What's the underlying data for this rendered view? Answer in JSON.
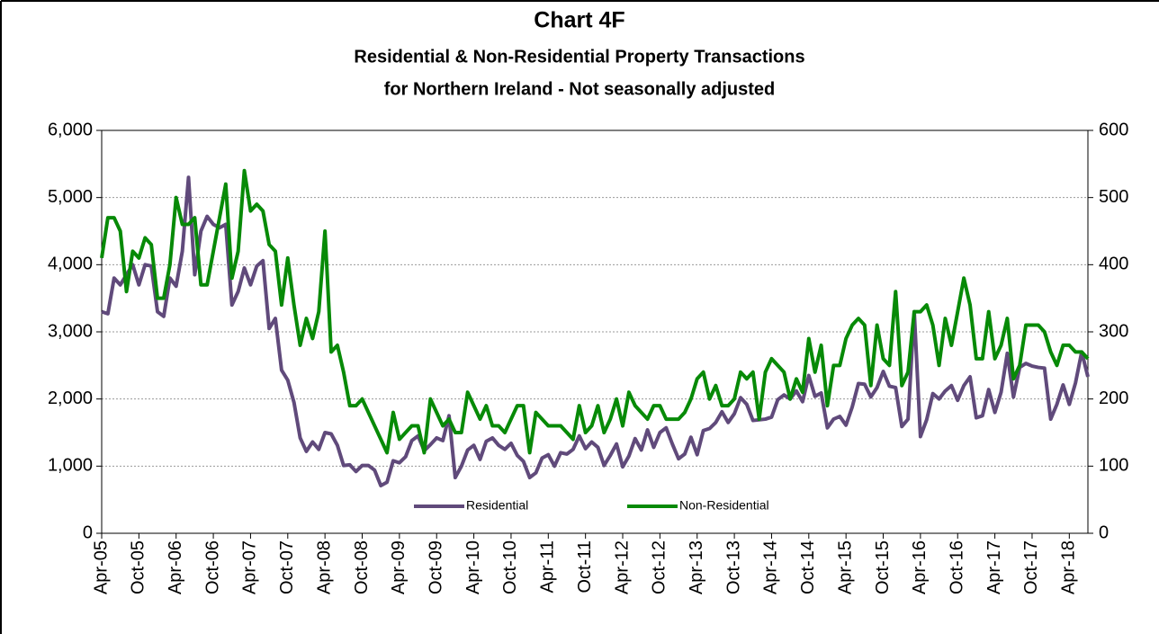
{
  "chart_data": {
    "type": "line",
    "title": "Chart 4F",
    "subtitle": [
      "Residential & Non-Residential Property Transactions",
      "for Northern Ireland - Not seasonally adjusted"
    ],
    "categories": [
      "Apr-05",
      null,
      null,
      null,
      null,
      null,
      "Oct-05",
      null,
      null,
      null,
      null,
      null,
      "Apr-06",
      null,
      null,
      null,
      null,
      null,
      "Oct-06",
      null,
      null,
      null,
      null,
      null,
      "Apr-07",
      null,
      null,
      null,
      null,
      null,
      "Oct-07",
      null,
      null,
      null,
      null,
      null,
      "Apr-08",
      null,
      null,
      null,
      null,
      null,
      "Oct-08",
      null,
      null,
      null,
      null,
      null,
      "Apr-09",
      null,
      null,
      null,
      null,
      null,
      "Oct-09",
      null,
      null,
      null,
      null,
      null,
      "Apr-10",
      null,
      null,
      null,
      null,
      null,
      "Oct-10",
      null,
      null,
      null,
      null,
      null,
      "Apr-11",
      null,
      null,
      null,
      null,
      null,
      "Oct-11",
      null,
      null,
      null,
      null,
      null,
      "Apr-12",
      null,
      null,
      null,
      null,
      null,
      "Oct-12",
      null,
      null,
      null,
      null,
      null,
      "Apr-13",
      null,
      null,
      null,
      null,
      null,
      "Oct-13",
      null,
      null,
      null,
      null,
      null,
      "Apr-14",
      null,
      null,
      null,
      null,
      null,
      "Oct-14",
      null,
      null,
      null,
      null,
      null,
      "Apr-15",
      null,
      null,
      null,
      null,
      null,
      "Oct-15",
      null,
      null,
      null,
      null,
      null,
      "Apr-16",
      null,
      null,
      null,
      null,
      null,
      "Oct-16",
      null,
      null,
      null,
      null,
      null,
      "Apr-17",
      null,
      null,
      null,
      null,
      null,
      "Oct-17",
      null,
      null,
      null,
      null,
      null,
      "Apr-18",
      null,
      null,
      null
    ],
    "series": [
      {
        "name": "Residential",
        "color": "#604a7b",
        "axis": "y",
        "values": [
          3300,
          3270,
          3800,
          3700,
          3850,
          4000,
          3700,
          4000,
          3980,
          3300,
          3230,
          3800,
          3680,
          4200,
          5300,
          3850,
          4500,
          4720,
          4600,
          4550,
          4600,
          3400,
          3600,
          3950,
          3700,
          3980,
          4060,
          3050,
          3200,
          2430,
          2280,
          1950,
          1420,
          1220,
          1360,
          1250,
          1500,
          1480,
          1310,
          1010,
          1020,
          920,
          1010,
          1010,
          940,
          710,
          760,
          1080,
          1050,
          1140,
          1380,
          1450,
          1230,
          1320,
          1420,
          1380,
          1750,
          830,
          1000,
          1240,
          1310,
          1100,
          1370,
          1420,
          1310,
          1250,
          1340,
          1160,
          1070,
          830,
          900,
          1120,
          1170,
          1000,
          1200,
          1180,
          1250,
          1450,
          1260,
          1360,
          1280,
          1010,
          1160,
          1330,
          990,
          1150,
          1410,
          1240,
          1540,
          1280,
          1500,
          1570,
          1330,
          1110,
          1180,
          1430,
          1170,
          1530,
          1560,
          1650,
          1810,
          1650,
          1780,
          2020,
          1920,
          1680,
          1690,
          1700,
          1730,
          1990,
          2060,
          2000,
          2120,
          1960,
          2350,
          2040,
          2090,
          1570,
          1700,
          1740,
          1610,
          1880,
          2230,
          2220,
          2030,
          2170,
          2410,
          2190,
          2170,
          1590,
          1700,
          3300,
          1440,
          1690,
          2080,
          2000,
          2120,
          2200,
          1980,
          2200,
          2330,
          1720,
          1750,
          2140,
          1800,
          2100,
          2680,
          2030,
          2470,
          2530,
          2490,
          2470,
          2460,
          1700,
          1920,
          2210,
          1920,
          2240,
          2700,
          2330
        ]
      },
      {
        "name": "Non-Residential",
        "color": "#078a07",
        "axis": "y2",
        "values": [
          410,
          470,
          470,
          450,
          360,
          420,
          410,
          440,
          430,
          350,
          350,
          400,
          500,
          460,
          460,
          470,
          370,
          370,
          420,
          470,
          520,
          380,
          420,
          540,
          480,
          490,
          480,
          430,
          420,
          340,
          410,
          340,
          280,
          320,
          290,
          330,
          450,
          270,
          280,
          240,
          190,
          190,
          200,
          180,
          160,
          140,
          120,
          180,
          140,
          150,
          160,
          160,
          120,
          200,
          180,
          160,
          170,
          150,
          150,
          210,
          190,
          170,
          190,
          160,
          160,
          150,
          170,
          190,
          190,
          120,
          180,
          170,
          160,
          160,
          160,
          150,
          140,
          190,
          150,
          160,
          190,
          150,
          170,
          200,
          160,
          210,
          190,
          180,
          170,
          190,
          190,
          170,
          170,
          170,
          180,
          200,
          230,
          240,
          200,
          220,
          190,
          190,
          200,
          240,
          230,
          240,
          170,
          240,
          260,
          250,
          240,
          200,
          230,
          210,
          290,
          240,
          280,
          190,
          250,
          250,
          290,
          310,
          320,
          310,
          220,
          310,
          260,
          250,
          360,
          220,
          240,
          330,
          330,
          340,
          310,
          250,
          320,
          280,
          330,
          380,
          340,
          260,
          260,
          330,
          260,
          280,
          320,
          230,
          250,
          310,
          310,
          310,
          300,
          270,
          250,
          280,
          280,
          270,
          270,
          260
        ]
      }
    ],
    "ylim": [
      0,
      6000
    ],
    "yticks": [
      0,
      {
        "value": 1000,
        "label": "1,000"
      },
      {
        "value": 2000,
        "label": "2,000"
      },
      {
        "value": 3000,
        "label": "3,000"
      },
      {
        "value": 4000,
        "label": "4,000"
      },
      {
        "value": 5000,
        "label": "5,000"
      },
      {
        "value": 6000,
        "label": "6,000"
      }
    ],
    "y2lim": [
      0,
      600
    ],
    "y2ticks": [
      0,
      100,
      200,
      300,
      400,
      500,
      600
    ],
    "grid": true,
    "legend": "bottom"
  }
}
